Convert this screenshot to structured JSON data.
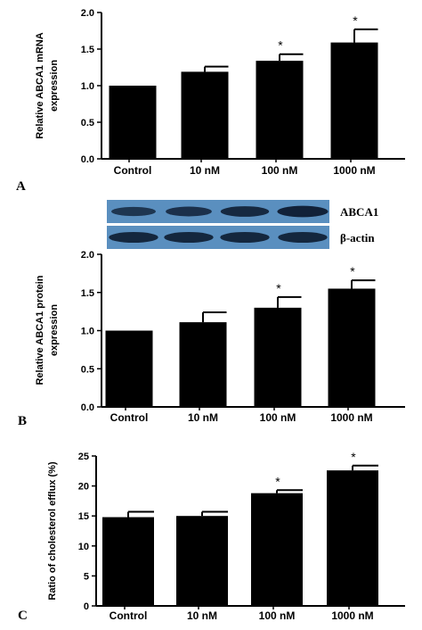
{
  "chart_data": [
    {
      "type": "bar",
      "panel": "A",
      "categories": [
        "Control",
        "10 nM",
        "100 nM",
        "1000 nM"
      ],
      "values": [
        1.0,
        1.19,
        1.34,
        1.59
      ],
      "errors": [
        0.0,
        0.07,
        0.09,
        0.18
      ],
      "significance": [
        "",
        "",
        "*",
        "*"
      ],
      "ylabel_lines": [
        "Relative ABCA1 mRNA",
        "expression"
      ],
      "ylim": [
        0,
        2.0
      ],
      "yticks": [
        "0.0",
        "0.5",
        "1.0",
        "1.5",
        "2.0"
      ],
      "ytick_values": [
        0,
        0.5,
        1.0,
        1.5,
        2.0
      ]
    },
    {
      "type": "bar",
      "panel": "B",
      "categories": [
        "Control",
        "10 nM",
        "100 nM",
        "1000 nM"
      ],
      "values": [
        1.0,
        1.11,
        1.3,
        1.55
      ],
      "errors": [
        0.0,
        0.13,
        0.14,
        0.11
      ],
      "significance": [
        "",
        "",
        "*",
        "*"
      ],
      "ylabel_lines": [
        "Relative ABCA1 protein",
        "expression"
      ],
      "ylim": [
        0,
        2.0
      ],
      "yticks": [
        "0.0",
        "0.5",
        "1.0",
        "1.5",
        "2.0"
      ],
      "ytick_values": [
        0,
        0.5,
        1.0,
        1.5,
        2.0
      ],
      "blot": {
        "rows": [
          {
            "label": "ABCA1",
            "intensities": [
              0.55,
              0.65,
              0.8,
              0.95
            ]
          },
          {
            "label": "β-actin",
            "intensities": [
              0.85,
              0.85,
              0.85,
              0.85
            ]
          }
        ]
      }
    },
    {
      "type": "bar",
      "panel": "C",
      "categories": [
        "Control",
        "10 nM",
        "100 nM",
        "1000 nM"
      ],
      "values": [
        14.8,
        15.0,
        18.8,
        22.6
      ],
      "errors": [
        0.9,
        0.7,
        0.5,
        0.8
      ],
      "significance": [
        "",
        "",
        "*",
        "*"
      ],
      "ylabel_lines": [
        "Ratio of cholesterol efflux (%)"
      ],
      "ylim": [
        0,
        25
      ],
      "yticks": [
        "0",
        "5",
        "10",
        "15",
        "20",
        "25"
      ],
      "ytick_values": [
        0,
        5,
        10,
        15,
        20,
        25
      ]
    }
  ],
  "colors": {
    "bar": "#000000",
    "blot_background": "#5a8fbf",
    "band": "#0f1f35"
  }
}
